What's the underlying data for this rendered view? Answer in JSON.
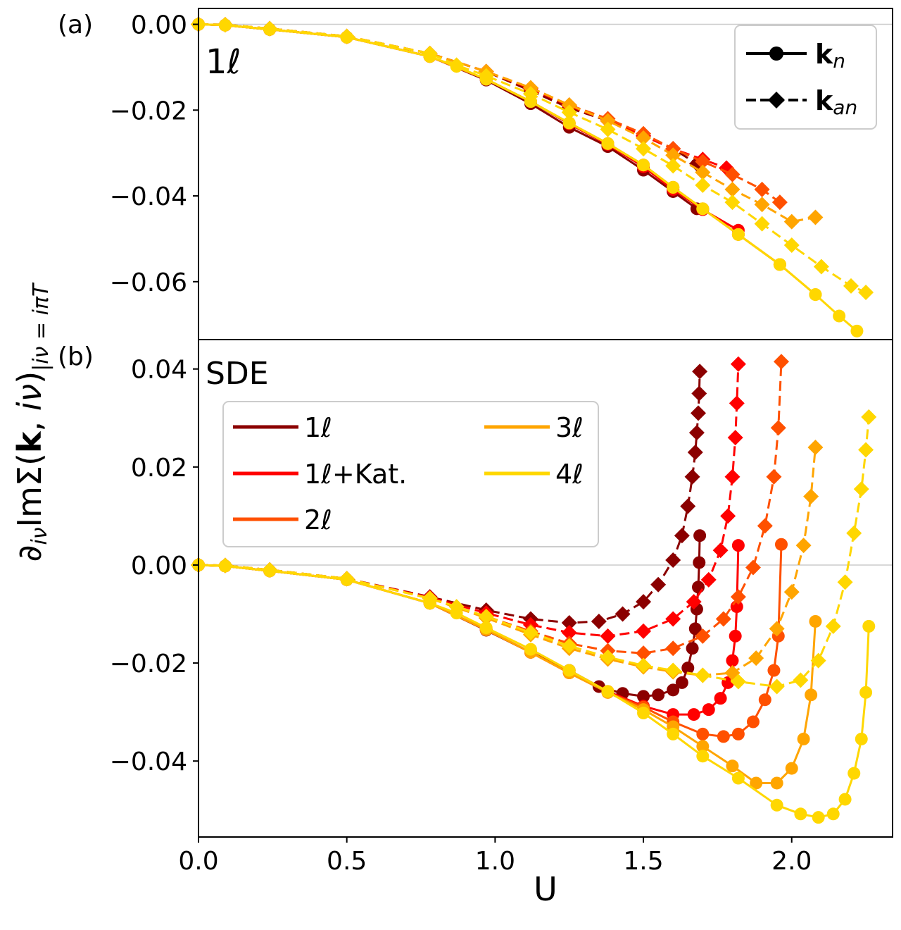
{
  "chart_data": [
    {
      "panel": "(a)",
      "annotation": "1ℓ",
      "type": "line",
      "title": "",
      "xlabel": "U",
      "ylabel": "∂iν ImΣ(k, iν)|iν=iπT",
      "xlim": [
        0.0,
        2.34
      ],
      "ylim": [
        -0.0735,
        0.0037
      ],
      "xticks": [],
      "yticks": [
        "0.00",
        "−0.02",
        "−0.04",
        "−0.06"
      ],
      "yticks_values": [
        0.0,
        -0.02,
        -0.04,
        -0.06
      ],
      "reference_line_y": 0.0,
      "legend": {
        "placement": "top-right",
        "entries": [
          {
            "style": "solid",
            "marker": "circle",
            "label": "k",
            "sub": "n"
          },
          {
            "style": "dashed",
            "marker": "diamond",
            "label": "k",
            "sub": "an"
          }
        ]
      },
      "series": [
        {
          "name": "1ℓ (kn)",
          "color": "#8b0000",
          "dash": "solid",
          "marker": "circle",
          "x": [
            0,
            0.09,
            0.24,
            0.5,
            0.78,
            0.97,
            1.12,
            1.25,
            1.38,
            1.5,
            1.6,
            1.68
          ],
          "y": [
            0,
            -0.0002,
            -0.0012,
            -0.003,
            -0.0075,
            -0.013,
            -0.0185,
            -0.024,
            -0.0285,
            -0.034,
            -0.039,
            -0.043
          ]
        },
        {
          "name": "1ℓ (kan)",
          "color": "#8b0000",
          "dash": "dashed",
          "marker": "diamond",
          "x": [
            0,
            0.09,
            0.24,
            0.5,
            0.78,
            0.97,
            1.12,
            1.25,
            1.38,
            1.5,
            1.6,
            1.68
          ],
          "y": [
            0,
            -0.0001,
            -0.001,
            -0.0028,
            -0.0068,
            -0.011,
            -0.0155,
            -0.0195,
            -0.0225,
            -0.026,
            -0.029,
            -0.0325
          ]
        },
        {
          "name": "1ℓ+Kat. (kn)",
          "color": "#ff0000",
          "dash": "solid",
          "marker": "circle",
          "x": [
            0,
            0.09,
            0.24,
            0.5,
            0.78,
            0.97,
            1.12,
            1.25,
            1.38,
            1.5,
            1.6,
            1.7,
            1.82
          ],
          "y": [
            0,
            -0.0002,
            -0.0012,
            -0.003,
            -0.0075,
            -0.0128,
            -0.018,
            -0.0232,
            -0.028,
            -0.0332,
            -0.0385,
            -0.0432,
            -0.048
          ]
        },
        {
          "name": "1ℓ+Kat. (kan)",
          "color": "#ff0000",
          "dash": "dashed",
          "marker": "diamond",
          "x": [
            0,
            0.09,
            0.24,
            0.5,
            0.78,
            0.97,
            1.12,
            1.25,
            1.38,
            1.5,
            1.6,
            1.7,
            1.78
          ],
          "y": [
            0,
            -0.0001,
            -0.001,
            -0.0028,
            -0.0068,
            -0.011,
            -0.015,
            -0.019,
            -0.0225,
            -0.026,
            -0.029,
            -0.0315,
            -0.0335
          ]
        },
        {
          "name": "2ℓ (kn)",
          "color": "#ff5000",
          "dash": "solid",
          "marker": "circle",
          "x": [
            0,
            0.09,
            0.24,
            0.5,
            0.78,
            0.97,
            1.12,
            1.25,
            1.38,
            1.5,
            1.6,
            1.7,
            1.82,
            1.96
          ],
          "y": [
            0,
            -0.0002,
            -0.0012,
            -0.003,
            -0.0075,
            -0.0128,
            -0.018,
            -0.023,
            -0.0278,
            -0.0328,
            -0.038,
            -0.043,
            -0.049,
            -0.056
          ]
        },
        {
          "name": "2ℓ (kan)",
          "color": "#ff5000",
          "dash": "dashed",
          "marker": "diamond",
          "x": [
            0,
            0.09,
            0.24,
            0.5,
            0.78,
            0.97,
            1.12,
            1.25,
            1.38,
            1.5,
            1.6,
            1.7,
            1.8,
            1.9,
            1.96
          ],
          "y": [
            0,
            -0.0001,
            -0.001,
            -0.0028,
            -0.0068,
            -0.011,
            -0.0148,
            -0.0188,
            -0.022,
            -0.0255,
            -0.029,
            -0.032,
            -0.035,
            -0.0385,
            -0.0415
          ]
        },
        {
          "name": "3ℓ (kn)",
          "color": "#ffa500",
          "dash": "solid",
          "marker": "circle",
          "x": [
            0,
            0.09,
            0.24,
            0.5,
            0.78,
            0.97,
            1.12,
            1.25,
            1.38,
            1.5,
            1.6,
            1.7,
            1.82,
            1.96,
            2.08
          ],
          "y": [
            0,
            -0.0002,
            -0.0012,
            -0.003,
            -0.0075,
            -0.0128,
            -0.018,
            -0.023,
            -0.0278,
            -0.0328,
            -0.038,
            -0.043,
            -0.049,
            -0.056,
            -0.063
          ]
        },
        {
          "name": "3ℓ (kan)",
          "color": "#ffa500",
          "dash": "dashed",
          "marker": "diamond",
          "x": [
            0,
            0.09,
            0.24,
            0.5,
            0.78,
            0.97,
            1.12,
            1.25,
            1.38,
            1.5,
            1.6,
            1.7,
            1.8,
            1.9,
            2.0,
            2.08
          ],
          "y": [
            0,
            -0.0001,
            -0.001,
            -0.0028,
            -0.0068,
            -0.011,
            -0.0148,
            -0.0188,
            -0.0225,
            -0.0265,
            -0.0305,
            -0.0345,
            -0.0385,
            -0.042,
            -0.046,
            -0.045
          ]
        },
        {
          "name": "4ℓ (kn)",
          "color": "#ffd700",
          "dash": "solid",
          "marker": "circle",
          "x": [
            0,
            0.09,
            0.24,
            0.5,
            0.78,
            0.87,
            0.97,
            1.12,
            1.25,
            1.38,
            1.5,
            1.6,
            1.7,
            1.82,
            1.96,
            2.08,
            2.16,
            2.22
          ],
          "y": [
            0,
            -0.0002,
            -0.0012,
            -0.003,
            -0.0075,
            -0.0098,
            -0.0128,
            -0.018,
            -0.023,
            -0.0278,
            -0.0328,
            -0.038,
            -0.043,
            -0.049,
            -0.056,
            -0.063,
            -0.068,
            -0.0715
          ]
        },
        {
          "name": "4ℓ (kan)",
          "color": "#ffd700",
          "dash": "dashed",
          "marker": "diamond",
          "x": [
            0,
            0.09,
            0.24,
            0.5,
            0.78,
            0.87,
            0.97,
            1.12,
            1.25,
            1.38,
            1.5,
            1.6,
            1.7,
            1.8,
            1.9,
            2.0,
            2.1,
            2.2,
            2.25
          ],
          "y": [
            0,
            -0.0001,
            -0.001,
            -0.0028,
            -0.0068,
            -0.0095,
            -0.012,
            -0.0162,
            -0.0205,
            -0.0245,
            -0.029,
            -0.033,
            -0.0375,
            -0.0415,
            -0.0465,
            -0.0515,
            -0.0565,
            -0.061,
            -0.0625
          ]
        }
      ]
    },
    {
      "panel": "(b)",
      "annotation": "SDE",
      "type": "line",
      "title": "",
      "xlabel": "U",
      "ylabel": "∂iν ImΣ(k, iν)|iν=iπT",
      "xlim": [
        0.0,
        2.34
      ],
      "ylim": [
        -0.0555,
        0.046
      ],
      "xticks": [
        "0.0",
        "0.5",
        "1.0",
        "1.5",
        "2.0"
      ],
      "xticks_values": [
        0.0,
        0.5,
        1.0,
        1.5,
        2.0
      ],
      "yticks": [
        "0.04",
        "0.02",
        "0.00",
        "−0.02",
        "−0.04"
      ],
      "yticks_values": [
        0.04,
        0.02,
        0.0,
        -0.02,
        -0.04
      ],
      "reference_line_y": 0.0,
      "legend": {
        "placement": "upper-left",
        "entries": [
          {
            "label": "1ℓ",
            "color": "#8b0000"
          },
          {
            "label": "1ℓ+Kat.",
            "color": "#ff0000"
          },
          {
            "label": "2ℓ",
            "color": "#ff5000"
          },
          {
            "label": "3ℓ",
            "color": "#ffa500"
          },
          {
            "label": "4ℓ",
            "color": "#ffd700"
          }
        ]
      },
      "series": [
        {
          "name": "1ℓ (kn)",
          "color": "#8b0000",
          "dash": "solid",
          "marker": "circle",
          "x": [
            0,
            0.09,
            0.24,
            0.5,
            0.78,
            0.97,
            1.12,
            1.25,
            1.35,
            1.43,
            1.5,
            1.55,
            1.6,
            1.63,
            1.65,
            1.665,
            1.675,
            1.68,
            1.685,
            1.688,
            1.69
          ],
          "y": [
            0,
            -0.0002,
            -0.0012,
            -0.003,
            -0.0078,
            -0.0133,
            -0.0178,
            -0.0215,
            -0.0248,
            -0.0262,
            -0.0268,
            -0.0265,
            -0.0255,
            -0.024,
            -0.021,
            -0.017,
            -0.013,
            -0.009,
            -0.0045,
            0.0005,
            0.006
          ]
        },
        {
          "name": "1ℓ (kan)",
          "color": "#8b0000",
          "dash": "dashed",
          "marker": "diamond",
          "x": [
            0,
            0.09,
            0.24,
            0.5,
            0.78,
            0.97,
            1.12,
            1.25,
            1.35,
            1.43,
            1.5,
            1.55,
            1.6,
            1.63,
            1.65,
            1.665,
            1.675,
            1.68,
            1.685,
            1.688,
            1.69
          ],
          "y": [
            0,
            -0.0001,
            -0.001,
            -0.0028,
            -0.0065,
            -0.0092,
            -0.011,
            -0.0118,
            -0.0115,
            -0.01,
            -0.0075,
            -0.004,
            0.001,
            0.006,
            0.012,
            0.018,
            0.023,
            0.027,
            0.031,
            0.035,
            0.0395
          ]
        },
        {
          "name": "1ℓ+Kat. (kn)",
          "color": "#ff0000",
          "dash": "solid",
          "marker": "circle",
          "x": [
            0,
            0.09,
            0.24,
            0.5,
            0.78,
            0.97,
            1.12,
            1.25,
            1.38,
            1.5,
            1.6,
            1.67,
            1.72,
            1.76,
            1.785,
            1.8,
            1.81,
            1.815,
            1.82
          ],
          "y": [
            0,
            -0.0002,
            -0.0012,
            -0.003,
            -0.0078,
            -0.0132,
            -0.0178,
            -0.022,
            -0.0258,
            -0.0288,
            -0.0305,
            -0.0305,
            -0.0295,
            -0.0272,
            -0.024,
            -0.0195,
            -0.0145,
            -0.0085,
            0.004
          ]
        },
        {
          "name": "1ℓ+Kat. (kan)",
          "color": "#ff0000",
          "dash": "dashed",
          "marker": "diamond",
          "x": [
            0,
            0.09,
            0.24,
            0.5,
            0.78,
            0.97,
            1.12,
            1.25,
            1.38,
            1.5,
            1.6,
            1.67,
            1.72,
            1.76,
            1.785,
            1.8,
            1.81,
            1.815,
            1.82
          ],
          "y": [
            0,
            -0.0001,
            -0.001,
            -0.0028,
            -0.0066,
            -0.0098,
            -0.0122,
            -0.0138,
            -0.0145,
            -0.0135,
            -0.011,
            -0.0075,
            -0.003,
            0.003,
            0.01,
            0.018,
            0.026,
            0.033,
            0.041
          ]
        },
        {
          "name": "2ℓ (kn)",
          "color": "#ff5000",
          "dash": "solid",
          "marker": "circle",
          "x": [
            0,
            0.09,
            0.24,
            0.5,
            0.78,
            0.97,
            1.12,
            1.25,
            1.38,
            1.5,
            1.6,
            1.7,
            1.77,
            1.82,
            1.87,
            1.91,
            1.94,
            1.955,
            1.965
          ],
          "y": [
            0,
            -0.0002,
            -0.0012,
            -0.003,
            -0.0078,
            -0.0132,
            -0.0178,
            -0.022,
            -0.026,
            -0.029,
            -0.032,
            -0.0345,
            -0.035,
            -0.0345,
            -0.032,
            -0.0275,
            -0.0215,
            -0.0145,
            0.0042
          ]
        },
        {
          "name": "2ℓ (kan)",
          "color": "#ff5000",
          "dash": "dashed",
          "marker": "diamond",
          "x": [
            0,
            0.09,
            0.24,
            0.5,
            0.78,
            0.97,
            1.12,
            1.25,
            1.38,
            1.5,
            1.6,
            1.7,
            1.77,
            1.82,
            1.87,
            1.91,
            1.94,
            1.955,
            1.965
          ],
          "y": [
            0,
            -0.0001,
            -0.001,
            -0.0028,
            -0.0068,
            -0.0105,
            -0.0135,
            -0.016,
            -0.0175,
            -0.018,
            -0.017,
            -0.0145,
            -0.011,
            -0.0065,
            -0.0005,
            0.008,
            0.018,
            0.028,
            0.0415
          ]
        },
        {
          "name": "3ℓ (kn)",
          "color": "#ffa500",
          "dash": "solid",
          "marker": "circle",
          "x": [
            0,
            0.09,
            0.24,
            0.5,
            0.78,
            0.97,
            1.12,
            1.25,
            1.38,
            1.5,
            1.6,
            1.7,
            1.8,
            1.88,
            1.95,
            2.0,
            2.04,
            2.065,
            2.08
          ],
          "y": [
            0,
            -0.0002,
            -0.0012,
            -0.003,
            -0.0078,
            -0.0132,
            -0.0178,
            -0.022,
            -0.026,
            -0.0295,
            -0.033,
            -0.037,
            -0.041,
            -0.0445,
            -0.0445,
            -0.0415,
            -0.0355,
            -0.0265,
            -0.0115
          ]
        },
        {
          "name": "3ℓ (kan)",
          "color": "#ffa500",
          "dash": "dashed",
          "marker": "diamond",
          "x": [
            0,
            0.09,
            0.24,
            0.5,
            0.78,
            0.97,
            1.12,
            1.25,
            1.38,
            1.5,
            1.6,
            1.7,
            1.8,
            1.88,
            1.95,
            2.0,
            2.04,
            2.065,
            2.08
          ],
          "y": [
            0,
            -0.0001,
            -0.001,
            -0.0028,
            -0.0068,
            -0.0108,
            -0.0142,
            -0.017,
            -0.0192,
            -0.0208,
            -0.0218,
            -0.0225,
            -0.022,
            -0.019,
            -0.013,
            -0.0055,
            0.004,
            0.014,
            0.024
          ]
        },
        {
          "name": "4ℓ (kn)",
          "color": "#ffd700",
          "dash": "solid",
          "marker": "circle",
          "x": [
            0,
            0.09,
            0.24,
            0.5,
            0.78,
            0.87,
            0.97,
            1.12,
            1.25,
            1.38,
            1.5,
            1.6,
            1.7,
            1.82,
            1.95,
            2.03,
            2.09,
            2.14,
            2.18,
            2.21,
            2.235,
            2.25,
            2.26
          ],
          "y": [
            0,
            -0.0002,
            -0.0012,
            -0.003,
            -0.0078,
            -0.0098,
            -0.0128,
            -0.0172,
            -0.0215,
            -0.0258,
            -0.0302,
            -0.0345,
            -0.039,
            -0.0435,
            -0.049,
            -0.0508,
            -0.0515,
            -0.0508,
            -0.0478,
            -0.0425,
            -0.0355,
            -0.026,
            -0.0125
          ]
        },
        {
          "name": "4ℓ (kan)",
          "color": "#ffd700",
          "dash": "dashed",
          "marker": "diamond",
          "x": [
            0,
            0.09,
            0.24,
            0.5,
            0.78,
            0.87,
            0.97,
            1.12,
            1.25,
            1.38,
            1.5,
            1.6,
            1.7,
            1.82,
            1.95,
            2.03,
            2.09,
            2.14,
            2.18,
            2.21,
            2.235,
            2.25,
            2.26
          ],
          "y": [
            0,
            -0.0001,
            -0.001,
            -0.0028,
            -0.0068,
            -0.0085,
            -0.0105,
            -0.0138,
            -0.0165,
            -0.0188,
            -0.0205,
            -0.0215,
            -0.0225,
            -0.0238,
            -0.0248,
            -0.0235,
            -0.0195,
            -0.0125,
            -0.0035,
            0.0065,
            0.0155,
            0.0235,
            0.0302
          ]
        }
      ]
    }
  ],
  "labels": {
    "panel_a": "(a)",
    "panel_b": "(b)",
    "annot_a": "1ℓ",
    "annot_b": "SDE",
    "xlabel": "U"
  }
}
